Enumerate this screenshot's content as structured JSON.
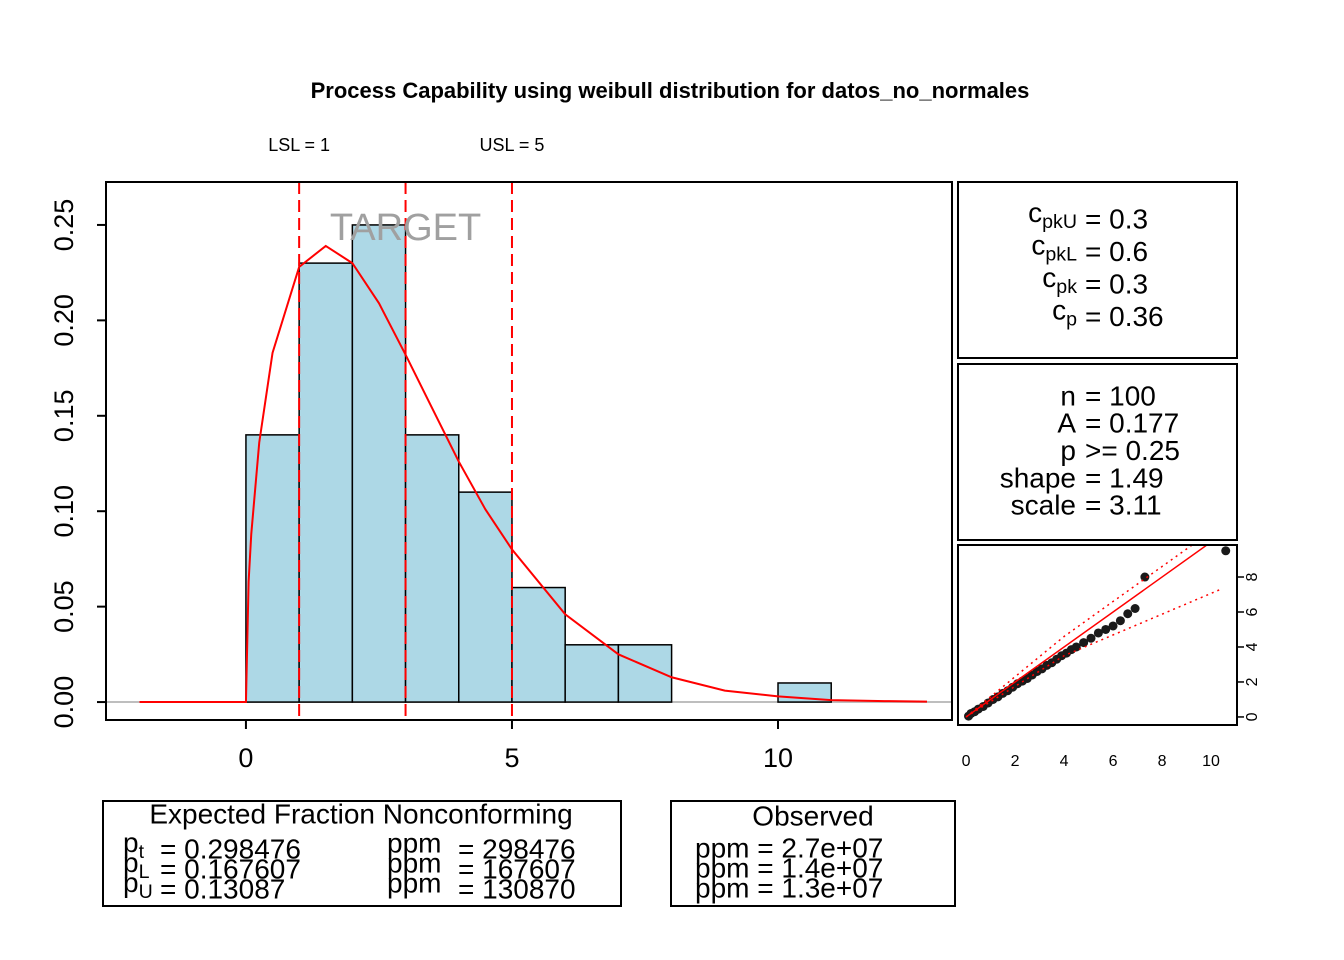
{
  "chart_data": [
    {
      "type": "histogram",
      "title": "Process Capability using weibull distribution for datos_no_normales",
      "bins": [
        0,
        1,
        2,
        3,
        4,
        5,
        6,
        7,
        8,
        9,
        10,
        11
      ],
      "values": [
        0.14,
        0.23,
        0.25,
        0.14,
        0.11,
        0.06,
        0.03,
        0.03,
        0,
        0,
        0.01
      ],
      "color": "#add8e6",
      "xlim": [
        -2.63,
        13.27
      ],
      "xticks": [
        0,
        5,
        10
      ],
      "ylim": [
        -0.0094,
        0.2725
      ],
      "yticks": [
        {
          "value": 0,
          "label": "0.00"
        },
        {
          "value": 0.05,
          "label": "0.05"
        },
        {
          "value": 0.1,
          "label": "0.10"
        },
        {
          "value": 0.15,
          "label": "0.15"
        },
        {
          "value": 0.2,
          "label": "0.20"
        },
        {
          "value": 0.25,
          "label": "0.25"
        }
      ],
      "baseline_color": "#bebebe",
      "lines": [
        {
          "color": "#ff0000",
          "x": [
            -2,
            0,
            0.05,
            0.1,
            0.25,
            0.5,
            1,
            1.5,
            2,
            2.5,
            3,
            3.5,
            4,
            4.5,
            5,
            6,
            7,
            8,
            9,
            10,
            11,
            12,
            12.8
          ],
          "values": [
            0,
            0,
            0.063,
            0.088,
            0.136,
            0.183,
            0.228,
            0.239,
            0.23,
            0.209,
            0.182,
            0.154,
            0.126,
            0.101,
            0.08,
            0.046,
            0.025,
            0.013,
            0.006,
            0.003,
            0.001,
            0.0005,
            0.0002
          ]
        }
      ],
      "limit_color": "#ff0000",
      "limits": [
        {
          "label": "LSL = 1",
          "value": 1
        },
        {
          "label": "USL = 5",
          "value": 5
        }
      ],
      "target": {
        "label": "TARGET",
        "value": 3,
        "color": "#a0a0a0"
      }
    },
    {
      "type": "scatter",
      "x": [
        0.1,
        0.2,
        0.35,
        0.5,
        0.7,
        0.9,
        1.1,
        1.3,
        1.5,
        1.7,
        1.9,
        2.1,
        2.3,
        2.5,
        2.7,
        2.9,
        3.1,
        3.3,
        3.5,
        3.7,
        3.9,
        4.1,
        4.3,
        4.5,
        4.8,
        5.1,
        5.4,
        5.7,
        6.0,
        6.3,
        6.6,
        6.9,
        7.3,
        10.6
      ],
      "values": [
        0.05,
        0.2,
        0.3,
        0.45,
        0.6,
        0.8,
        1.0,
        1.15,
        1.35,
        1.5,
        1.7,
        1.9,
        2.05,
        2.2,
        2.4,
        2.6,
        2.75,
        2.95,
        3.1,
        3.3,
        3.5,
        3.65,
        3.85,
        4.0,
        4.25,
        4.5,
        4.8,
        5.0,
        5.2,
        5.5,
        5.9,
        6.2,
        8.0,
        9.5
      ],
      "color": "#1a1a1a",
      "xlim": [
        -0.33,
        11.06
      ],
      "xticks": [
        0,
        2,
        4,
        6,
        8,
        10
      ],
      "ylim": [
        -0.46,
        9.83
      ],
      "yticks": [
        0,
        2,
        4,
        6,
        8
      ],
      "lines": [
        {
          "color": "#ff0000",
          "style": "solid",
          "x": [
            0,
            9.8
          ],
          "values": [
            0,
            9.8
          ]
        },
        {
          "color": "#ff0000",
          "style": "dotted",
          "x": [
            0,
            4,
            9.2
          ],
          "values": [
            0,
            4.6,
            9.8
          ]
        },
        {
          "color": "#ff0000",
          "style": "dotted",
          "x": [
            0,
            4,
            10.4
          ],
          "values": [
            0,
            3.5,
            7.3
          ]
        }
      ]
    }
  ],
  "indices": [
    {
      "base": "c",
      "sub": "pkU",
      "rest": "= 0.3"
    },
    {
      "base": "c",
      "sub": "pkL",
      "rest": "= 0.6"
    },
    {
      "base": "c",
      "sub": "pk",
      "rest": "= 0.3"
    },
    {
      "base": "c",
      "sub": "p",
      "rest": "= 0.36"
    }
  ],
  "statistics": [
    {
      "label": "n",
      "rest": "= 100"
    },
    {
      "label": "A",
      "rest": "= 0.177"
    },
    {
      "label": "p",
      "rest": ">= 0.25"
    },
    {
      "label": "shape",
      "rest": "= 1.49"
    },
    {
      "label": "scale",
      "rest": "= 3.11"
    }
  ],
  "expected": {
    "title": "Expected Fraction Nonconforming",
    "rows": [
      {
        "base": "p",
        "sub": "t",
        "rest": "= 0.298476",
        "ppm": "ppm",
        "ppm_rest": "= 298476"
      },
      {
        "base": "p",
        "sub": "L",
        "rest": "= 0.167607",
        "ppm": "ppm",
        "ppm_rest": "= 167607"
      },
      {
        "base": "p",
        "sub": "U",
        "rest": "= 0.13087",
        "ppm": "ppm",
        "ppm_rest": "= 130870"
      }
    ]
  },
  "observed": {
    "title": "Observed",
    "rows": [
      "ppm = 2.7e+07",
      "ppm = 1.4e+07",
      "ppm = 1.3e+07"
    ]
  }
}
